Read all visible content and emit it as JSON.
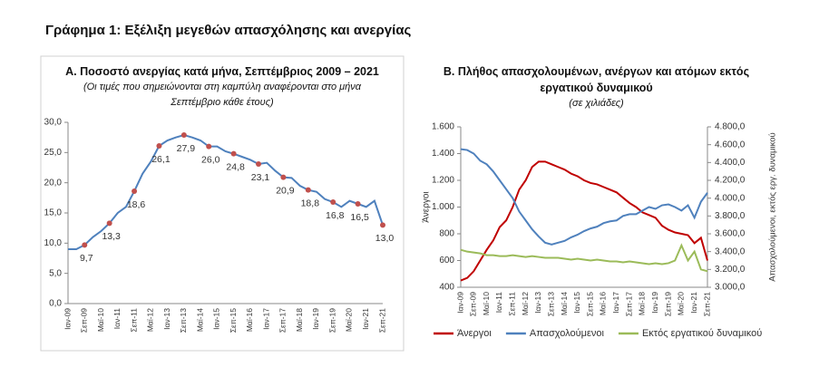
{
  "title": "Γράφημα 1: Εξέλιξη μεγεθών απασχόλησης και ανεργίας",
  "chart_data": [
    {
      "type": "line",
      "title": "Α. Ποσοστό ανεργίας κατά μήνα, Σεπτέμβριος 2009 – 2021",
      "subtitle": "(Οι τιμές που σημειώνονται στη καμπύλη αναφέρονται στο μήνα Σεπτέμβριο κάθε έτους)",
      "categories": [
        "Ιαν-09",
        null,
        "Σεπ-09",
        null,
        "Μαϊ-10",
        null,
        "Ιαν-11",
        null,
        "Σεπ-11",
        null,
        "Μαϊ-12",
        null,
        "Ιαν-13",
        null,
        "Σεπ-13",
        null,
        "Μαϊ-14",
        null,
        "Ιαν-15",
        null,
        "Σεπ-15",
        null,
        "Μαϊ-16",
        null,
        "Ιαν-17",
        null,
        "Σεπ-17",
        null,
        "Μαϊ-18",
        null,
        "Ιαν-19",
        null,
        "Σεπ-19",
        null,
        "Μαϊ-20",
        null,
        "Ιαν-21",
        null,
        "Σεπ-21"
      ],
      "series": [
        {
          "color": "#4f81bd",
          "marker_color": "#c0504d",
          "values": [
            9.0,
            9.0,
            9.7,
            11.0,
            12.0,
            13.3,
            15.0,
            16.0,
            18.6,
            21.5,
            23.5,
            26.1,
            27.0,
            27.5,
            27.9,
            27.5,
            27.0,
            26.0,
            26.0,
            25.2,
            24.8,
            24.3,
            23.8,
            23.1,
            23.3,
            22.0,
            20.9,
            20.8,
            19.5,
            18.8,
            18.5,
            17.3,
            16.8,
            16.0,
            17.0,
            16.5,
            16.0,
            17.0,
            13.0
          ],
          "value_labels": [
            null,
            null,
            "9,7",
            null,
            null,
            "13,3",
            null,
            null,
            "18,6",
            null,
            null,
            "26,1",
            null,
            null,
            "27,9",
            null,
            null,
            "26,0",
            null,
            null,
            "24,8",
            null,
            null,
            "23,1",
            null,
            null,
            "20,9",
            null,
            null,
            "18,8",
            null,
            null,
            "16,8",
            null,
            null,
            "16,5",
            null,
            null,
            "13,0"
          ]
        }
      ],
      "ylim": [
        0,
        30
      ],
      "yticks": [
        {
          "value": 0,
          "label": "0,0"
        },
        {
          "value": 5,
          "label": "5,0"
        },
        {
          "value": 10,
          "label": "10,0"
        },
        {
          "value": 15,
          "label": "15,0"
        },
        {
          "value": 20,
          "label": "20,0"
        },
        {
          "value": 25,
          "label": "25,0"
        },
        {
          "value": 30,
          "label": "30,0"
        }
      ],
      "grid": false
    },
    {
      "type": "line",
      "title": "Β. Πλήθος απασχολουμένων, ανέργων και ατόμων εκτός εργατικού δυναμικού",
      "subtitle": "(σε χιλιάδες)",
      "y_label": "Άνεργοι",
      "y2_label": "Απασχολούμενοι, εκτός εργ. δυναμικού",
      "categories": [
        "Ιαν-09",
        null,
        "Σεπ-09",
        null,
        "Μαϊ-10",
        null,
        "Ιαν-11",
        null,
        "Σεπ-11",
        null,
        "Μαϊ-12",
        null,
        "Ιαν-13",
        null,
        "Σεπ-13",
        null,
        "Μαϊ-14",
        null,
        "Ιαν-15",
        null,
        "Σεπ-15",
        null,
        "Μαϊ-16",
        null,
        "Ιαν-17",
        null,
        "Σεπ-17",
        null,
        "Μαϊ-18",
        null,
        "Ιαν-19",
        null,
        "Σεπ-19",
        null,
        "Μαϊ-20",
        null,
        "Ιαν-21",
        null,
        "Σεπ-21"
      ],
      "series": [
        {
          "name": "Άνεργοι",
          "color": "#c00000",
          "values": [
            450,
            470,
            520,
            600,
            680,
            750,
            850,
            900,
            1000,
            1130,
            1200,
            1300,
            1340,
            1340,
            1320,
            1300,
            1280,
            1250,
            1230,
            1200,
            1180,
            1170,
            1150,
            1130,
            1110,
            1070,
            1030,
            1000,
            960,
            940,
            920,
            860,
            830,
            810,
            800,
            790,
            730,
            770,
            600
          ]
        },
        {
          "name": "Απασχολούμενοι",
          "color": "#4f81bd",
          "axis": "y2",
          "values": [
            4550,
            4540,
            4500,
            4420,
            4380,
            4300,
            4200,
            4100,
            4000,
            3850,
            3750,
            3650,
            3570,
            3500,
            3480,
            3500,
            3520,
            3560,
            3590,
            3630,
            3660,
            3680,
            3720,
            3740,
            3750,
            3800,
            3820,
            3820,
            3860,
            3900,
            3880,
            3920,
            3930,
            3900,
            3860,
            3920,
            3780,
            3960,
            4060
          ]
        },
        {
          "name": "Εκτός εργατικού δυναμικού",
          "color": "#9bbb59",
          "axis": "y2",
          "values": [
            3420,
            3400,
            3390,
            3380,
            3360,
            3360,
            3350,
            3350,
            3360,
            3350,
            3340,
            3350,
            3340,
            3330,
            3330,
            3330,
            3320,
            3310,
            3320,
            3310,
            3300,
            3310,
            3300,
            3290,
            3290,
            3280,
            3290,
            3280,
            3270,
            3260,
            3270,
            3260,
            3270,
            3300,
            3470,
            3300,
            3400,
            3200,
            3180
          ]
        }
      ],
      "ylim": [
        400,
        1600
      ],
      "yticks": [
        400,
        600,
        800,
        {
          "value": 1000,
          "label": "1.000"
        },
        {
          "value": 1200,
          "label": "1.200"
        },
        {
          "value": 1400,
          "label": "1.400"
        },
        {
          "value": 1600,
          "label": "1.600"
        }
      ],
      "y2lim": [
        3000,
        4800
      ],
      "y2ticks": [
        {
          "value": 3000,
          "label": "3.000,0"
        },
        {
          "value": 3200,
          "label": "3.200,0"
        },
        {
          "value": 3400,
          "label": "3.400,0"
        },
        {
          "value": 3600,
          "label": "3.600,0"
        },
        {
          "value": 3800,
          "label": "3.800,0"
        },
        {
          "value": 4000,
          "label": "4.000,0"
        },
        {
          "value": 4200,
          "label": "4.200,0"
        },
        {
          "value": 4400,
          "label": "4.400,0"
        },
        {
          "value": 4600,
          "label": "4.600,0"
        },
        {
          "value": 4800,
          "label": "4.800,0"
        }
      ],
      "legend": "bottom",
      "grid": false
    }
  ]
}
